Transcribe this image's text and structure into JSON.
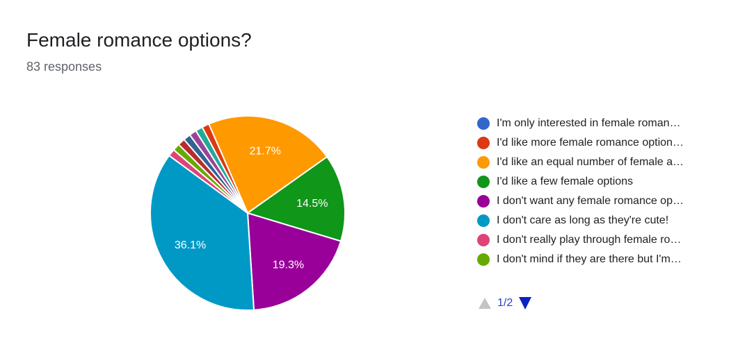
{
  "header": {
    "title": "Female romance options?",
    "subtitle": "83 responses"
  },
  "pager": {
    "label": "1/2",
    "prev_icon": "triangle-up-icon",
    "next_icon": "triangle-down-icon"
  },
  "chart_data": {
    "type": "pie",
    "title": "Female romance options?",
    "total_responses": 83,
    "legend_placement": "right",
    "start_angle_deg": 336.5,
    "direction": "clockwise",
    "slices": [
      {
        "label": "I'd like an equal number of female a…",
        "value": 21.7,
        "color": "#ff9900",
        "show_label": "21.7%"
      },
      {
        "label": "I'd like a few female options",
        "value": 14.5,
        "color": "#109618",
        "show_label": "14.5%"
      },
      {
        "label": "I don't want any female romance op…",
        "value": 19.3,
        "color": "#990099",
        "show_label": "19.3%"
      },
      {
        "label": "I don't care as long as they're cute!",
        "value": 36.1,
        "color": "#0099c6",
        "show_label": "36.1%"
      },
      {
        "label": "I don't really play through female ro…",
        "value": 1.2,
        "color": "#dd4477",
        "show_label": ""
      },
      {
        "label": "I don't mind if they are there but I'm…",
        "value": 1.2,
        "color": "#66aa00",
        "show_label": ""
      },
      {
        "label": "",
        "value": 1.2,
        "color": "#b82e2e",
        "show_label": ""
      },
      {
        "label": "",
        "value": 1.2,
        "color": "#316395",
        "show_label": ""
      },
      {
        "label": "",
        "value": 1.2,
        "color": "#994499",
        "show_label": ""
      },
      {
        "label": "",
        "value": 1.2,
        "color": "#22aa99",
        "show_label": ""
      },
      {
        "label": "I'm only interested in female roman…",
        "value": 0.0,
        "color": "#3366cc",
        "show_label": ""
      },
      {
        "label": "I'd like more female romance option…",
        "value": 1.2,
        "color": "#dc3912",
        "show_label": ""
      }
    ],
    "legend": [
      {
        "label": "I'm only interested in female roman…",
        "color": "#3366cc"
      },
      {
        "label": "I'd like more female romance option…",
        "color": "#dc3912"
      },
      {
        "label": "I'd like an equal number of female a…",
        "color": "#ff9900"
      },
      {
        "label": "I'd like a few female options",
        "color": "#109618"
      },
      {
        "label": "I don't want any female romance op…",
        "color": "#990099"
      },
      {
        "label": "I don't care as long as they're cute!",
        "color": "#0099c6"
      },
      {
        "label": "I don't really play through female ro…",
        "color": "#dd4477"
      },
      {
        "label": "I don't mind if they are there but I'm…",
        "color": "#66aa00"
      }
    ]
  }
}
